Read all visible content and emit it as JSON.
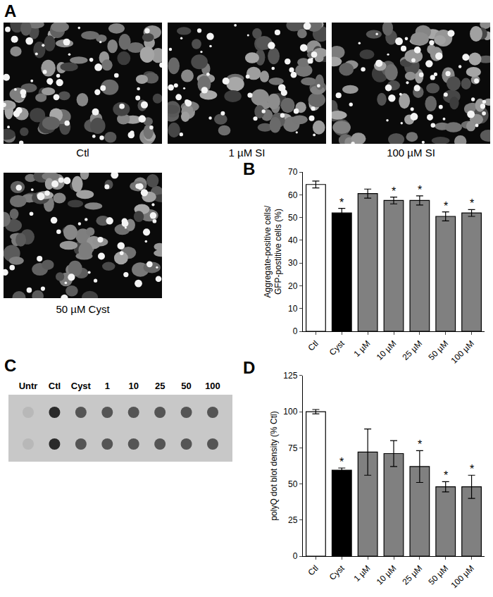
{
  "panel_labels": [
    "A",
    "B",
    "C",
    "D"
  ],
  "micrographs": [
    {
      "caption": "Ctl"
    },
    {
      "caption": "1 µM SI"
    },
    {
      "caption": "100 µM SI"
    },
    {
      "caption": "50 µM Cyst"
    }
  ],
  "dot_blot": {
    "lanes": [
      "Untr",
      "Ctl",
      "Cyst",
      "1",
      "10",
      "25",
      "50",
      "100"
    ],
    "rows": 2
  },
  "chart_data": [
    {
      "type": "bar",
      "categories": [
        "Ctl",
        "Cyst",
        "1 µM",
        "10 µM",
        "25 µM",
        "50 µM",
        "100 µM"
      ],
      "values": [
        64.5,
        52,
        60.5,
        57.5,
        57.5,
        50.5,
        52
      ],
      "errors": [
        1.5,
        2,
        2,
        1.5,
        2,
        2,
        1.5
      ],
      "colors": [
        "#ffffff",
        "#000000",
        "#808080",
        "#808080",
        "#808080",
        "#808080",
        "#808080"
      ],
      "ylabel": "Aggregate-positive cells/ GFP-postitive cells (%)",
      "ylim": [
        0,
        70
      ],
      "yticks": [
        0,
        10,
        20,
        30,
        40,
        50,
        60,
        70
      ],
      "annotations": [
        {
          "category": "Cyst",
          "text": "*"
        },
        {
          "category": "10 µM",
          "text": "*"
        },
        {
          "category": "25 µM",
          "text": "*"
        },
        {
          "category": "50 µM",
          "text": "*"
        },
        {
          "category": "100 µM",
          "text": "*"
        }
      ]
    },
    {
      "type": "bar",
      "categories": [
        "Ctl",
        "Cyst",
        "1 µM",
        "10 µM",
        "25 µM",
        "50 µM",
        "100 µM"
      ],
      "values": [
        100,
        59.5,
        72,
        71,
        62,
        48,
        48
      ],
      "errors": [
        1.5,
        1.5,
        16,
        9,
        11,
        3.5,
        8
      ],
      "colors": [
        "#ffffff",
        "#000000",
        "#808080",
        "#808080",
        "#808080",
        "#808080",
        "#808080"
      ],
      "ylabel": "polyQ dot blot density (% Ctl)",
      "ylim": [
        0,
        125
      ],
      "yticks": [
        0,
        25,
        50,
        75,
        100,
        125
      ],
      "annotations": [
        {
          "category": "Cyst",
          "text": "*"
        },
        {
          "category": "25 µM",
          "text": "*"
        },
        {
          "category": "50 µM",
          "text": "*"
        },
        {
          "category": "100 µM",
          "text": "*"
        }
      ]
    }
  ]
}
